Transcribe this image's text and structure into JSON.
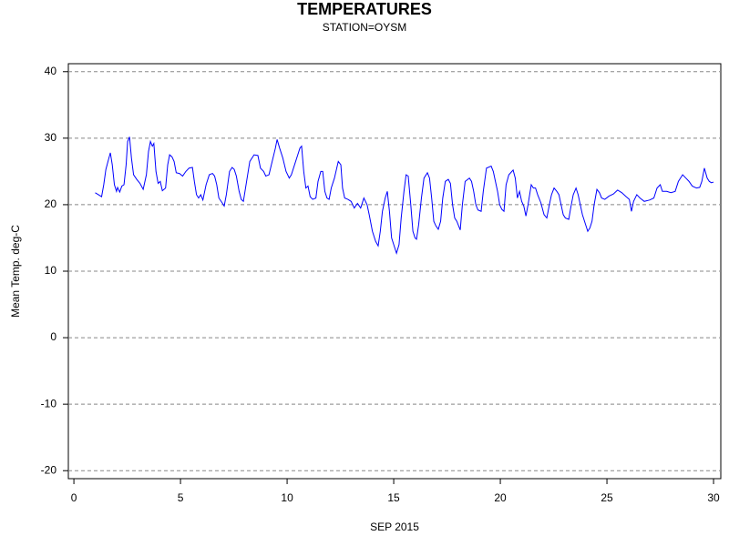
{
  "chart_data": {
    "type": "line",
    "title": "TEMPERATURES",
    "subtitle": "STATION=OYSM",
    "x_label": "SEP 2015",
    "y_label": "Mean Temp. deg-C",
    "color": "#0000ff",
    "grid": true,
    "xlim": [
      -0.26,
      30.34
    ],
    "xticks": [
      0,
      5,
      10,
      15,
      20,
      25,
      30
    ],
    "ylim": [
      -21.2,
      41.2
    ],
    "yticks": [
      -20,
      -10,
      0,
      10,
      20,
      30,
      40
    ],
    "x": [
      1.0,
      1.15,
      1.3,
      1.4,
      1.5,
      1.6,
      1.71,
      1.8,
      1.9,
      2.0,
      2.05,
      2.15,
      2.25,
      2.35,
      2.45,
      2.52,
      2.61,
      2.7,
      2.8,
      2.95,
      3.1,
      3.25,
      3.4,
      3.5,
      3.59,
      3.68,
      3.75,
      3.85,
      3.95,
      4.05,
      4.15,
      4.3,
      4.4,
      4.49,
      4.6,
      4.7,
      4.8,
      4.95,
      5.1,
      5.25,
      5.4,
      5.56,
      5.65,
      5.75,
      5.85,
      5.95,
      6.05,
      6.2,
      6.35,
      6.5,
      6.6,
      6.7,
      6.8,
      6.95,
      7.05,
      7.15,
      7.3,
      7.42,
      7.52,
      7.62,
      7.75,
      7.85,
      7.95,
      8.1,
      8.25,
      8.45,
      8.63,
      8.75,
      8.9,
      9.0,
      9.15,
      9.3,
      9.45,
      9.53,
      9.65,
      9.8,
      9.95,
      10.1,
      10.2,
      10.35,
      10.5,
      10.6,
      10.68,
      10.78,
      10.88,
      10.98,
      11.08,
      11.2,
      11.35,
      11.45,
      11.58,
      11.67,
      11.77,
      11.87,
      11.97,
      12.07,
      12.22,
      12.4,
      12.52,
      12.6,
      12.7,
      12.85,
      13.0,
      13.15,
      13.3,
      13.45,
      13.6,
      13.75,
      13.85,
      14.0,
      14.15,
      14.27,
      14.37,
      14.47,
      14.6,
      14.7,
      14.8,
      14.9,
      15.0,
      15.13,
      15.25,
      15.35,
      15.48,
      15.58,
      15.68,
      15.8,
      15.9,
      16.0,
      16.07,
      16.17,
      16.3,
      16.42,
      16.58,
      16.68,
      16.78,
      16.88,
      16.98,
      17.09,
      17.2,
      17.3,
      17.42,
      17.56,
      17.66,
      17.76,
      17.86,
      17.96,
      18.12,
      18.22,
      18.35,
      18.55,
      18.65,
      18.75,
      18.85,
      18.95,
      19.1,
      19.2,
      19.35,
      19.57,
      19.67,
      19.77,
      19.87,
      19.97,
      20.07,
      20.17,
      20.27,
      20.4,
      20.6,
      20.7,
      20.8,
      20.9,
      21.0,
      21.1,
      21.2,
      21.3,
      21.45,
      21.55,
      21.65,
      21.75,
      21.9,
      22.05,
      22.18,
      22.3,
      22.4,
      22.52,
      22.65,
      22.75,
      22.85,
      22.95,
      23.05,
      23.21,
      23.3,
      23.42,
      23.55,
      23.65,
      23.75,
      23.85,
      24.0,
      24.1,
      24.2,
      24.3,
      24.4,
      24.53,
      24.65,
      24.75,
      24.9,
      25.1,
      25.3,
      25.5,
      25.7,
      25.9,
      26.05,
      26.15,
      26.25,
      26.4,
      26.55,
      26.75,
      27.0,
      27.2,
      27.35,
      27.5,
      27.6,
      27.8,
      28.0,
      28.2,
      28.35,
      28.55,
      28.7,
      28.85,
      29.0,
      29.2,
      29.35,
      29.45,
      29.57,
      29.7,
      29.8,
      29.9,
      30.0
    ],
    "values": [
      21.8,
      21.5,
      21.2,
      23,
      25.3,
      26.5,
      27.8,
      26,
      23,
      22,
      22.6,
      21.9,
      22.8,
      23,
      26,
      29.5,
      30.2,
      27,
      24.5,
      23.8,
      23.2,
      22.3,
      24.5,
      28,
      29.5,
      28.8,
      29.2,
      25,
      23.2,
      23.5,
      22.1,
      22.5,
      26,
      27.5,
      27.2,
      26.5,
      24.8,
      24.7,
      24.3,
      25,
      25.5,
      25.6,
      23.5,
      21.5,
      21,
      21.5,
      20.7,
      23,
      24.5,
      24.7,
      24.3,
      23,
      21,
      20.3,
      19.8,
      21.5,
      25,
      25.6,
      25.3,
      24.3,
      22,
      20.8,
      20.5,
      23.5,
      26.5,
      27.5,
      27.4,
      25.5,
      25,
      24.3,
      24.5,
      26.5,
      28.5,
      29.8,
      28.5,
      27,
      25,
      24,
      24.5,
      26,
      27.5,
      28.5,
      28.8,
      25,
      22.5,
      22.8,
      21.2,
      20.8,
      21,
      23.5,
      25,
      25,
      22,
      21,
      20.8,
      22.5,
      24,
      26.5,
      26,
      22.5,
      21,
      20.8,
      20.5,
      19.5,
      20.2,
      19.5,
      21,
      20,
      18.5,
      16,
      14.5,
      13.8,
      16,
      19,
      21,
      22,
      19,
      15,
      14,
      12.7,
      14,
      18,
      22,
      24.5,
      24.3,
      20,
      16,
      15,
      14.8,
      17,
      21,
      24,
      24.8,
      24,
      21,
      17.5,
      16.8,
      16.3,
      17.5,
      21,
      23.5,
      23.8,
      23.2,
      20,
      18,
      17.5,
      16.2,
      20,
      23.5,
      24,
      23.5,
      22,
      20,
      19.2,
      19,
      22,
      25.5,
      25.8,
      25,
      23.5,
      22,
      20,
      19.3,
      19,
      23,
      24.5,
      25.2,
      24,
      21,
      22,
      20.5,
      19.8,
      18.3,
      20,
      23,
      22.5,
      22.5,
      21.5,
      20.3,
      18.5,
      18,
      20,
      21.5,
      22.5,
      22,
      21.5,
      20,
      18.5,
      18,
      17.8,
      19.5,
      21.5,
      22.5,
      21.5,
      20,
      18.5,
      17,
      16,
      16.5,
      17.5,
      20,
      22.3,
      21.8,
      21,
      20.8,
      21.3,
      21.6,
      22.2,
      21.8,
      21.2,
      20.8,
      19,
      20.5,
      21.5,
      21,
      20.5,
      20.7,
      21,
      22.5,
      23,
      22,
      22,
      21.8,
      22,
      23.5,
      24.5,
      24,
      23.5,
      22.8,
      22.5,
      22.6,
      23.5,
      25.5,
      24,
      23.5,
      23.3,
      23.4
    ]
  }
}
